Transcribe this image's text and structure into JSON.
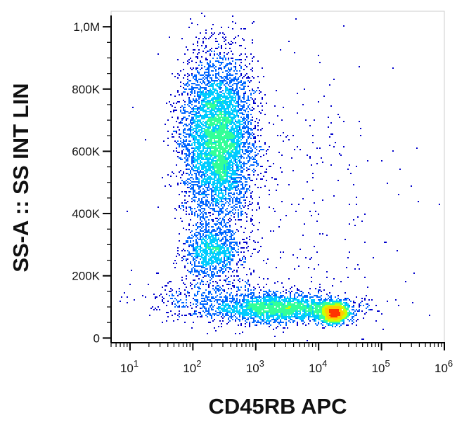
{
  "chart_data": {
    "type": "scatter",
    "subtype": "flow-cytometry density dot plot",
    "title": "",
    "xlabel": "CD45RB APC",
    "ylabel": "SS-A :: SS INT LIN",
    "x_scale": "log",
    "y_scale": "linear",
    "xlim": [
      5,
      1000000
    ],
    "ylim": [
      -15000,
      1050000
    ],
    "x_ticks": [
      {
        "value": 10,
        "base": "10",
        "exp": "1"
      },
      {
        "value": 100,
        "base": "10",
        "exp": "2"
      },
      {
        "value": 1000,
        "base": "10",
        "exp": "3"
      },
      {
        "value": 10000,
        "base": "10",
        "exp": "4"
      },
      {
        "value": 100000,
        "base": "10",
        "exp": "5"
      },
      {
        "value": 1000000,
        "base": "10",
        "exp": "6"
      }
    ],
    "y_ticks": [
      {
        "value": 0,
        "label": "0"
      },
      {
        "value": 200000,
        "label": "200K"
      },
      {
        "value": 400000,
        "label": "400K"
      },
      {
        "value": 600000,
        "label": "600K"
      },
      {
        "value": 800000,
        "label": "800K"
      },
      {
        "value": 1000000,
        "label": "1,0M"
      }
    ],
    "grid": false,
    "legend": "none",
    "colormap": [
      "#0000cc",
      "#0066ff",
      "#00ccff",
      "#33ff99",
      "#ccff00",
      "#ffcc00",
      "#ff3300"
    ],
    "populations": [
      {
        "x_center": 250,
        "x_log_sd": 0.28,
        "y_center": 640000,
        "y_sd": 130000,
        "weight": 0.5
      },
      {
        "x_center": 200,
        "x_log_sd": 0.22,
        "y_center": 280000,
        "y_sd": 45000,
        "weight": 0.1
      },
      {
        "x_center": 18000,
        "x_log_sd": 0.12,
        "y_center": 80000,
        "y_sd": 18000,
        "weight": 0.12
      },
      {
        "x_center": 2500,
        "x_log_sd": 0.55,
        "y_center": 95000,
        "y_sd": 22000,
        "weight": 0.2
      },
      {
        "x_center": 300,
        "x_log_sd": 0.7,
        "y_center": 120000,
        "y_sd": 35000,
        "weight": 0.05
      },
      {
        "x_center": 3000,
        "x_log_sd": 0.9,
        "y_center": 450000,
        "y_sd": 250000,
        "weight": 0.03
      }
    ],
    "point_count": 16000
  }
}
